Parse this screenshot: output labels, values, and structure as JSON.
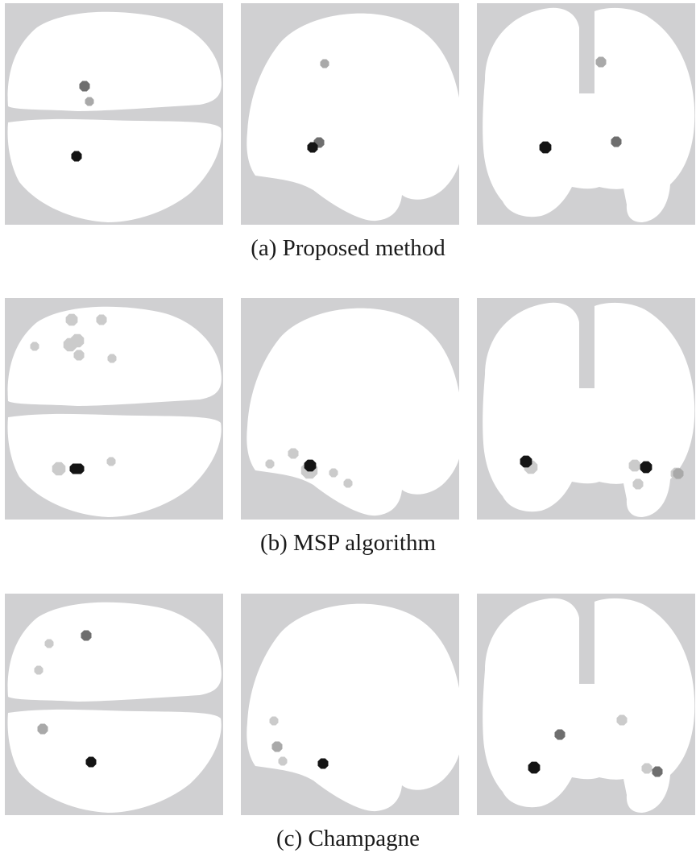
{
  "figure": {
    "colors": {
      "background": "#d0d0d2",
      "brain": "#ffffff",
      "strong": "#141414",
      "medium": "#6e6e6e",
      "weak": "#a9a9a9",
      "faint": "#cbcbcb"
    },
    "rows": [
      {
        "caption": "(a) Proposed method",
        "views": [
          {
            "view": "axial",
            "sources": [
              {
                "intensity": "medium",
                "type": "axial",
                "i": 0
              },
              {
                "intensity": "weak",
                "type": "axial",
                "i": 1
              },
              {
                "intensity": "strong",
                "type": "axial",
                "i": 2
              }
            ]
          },
          {
            "view": "sagittal",
            "sources": [
              {
                "intensity": "weak",
                "i": 0
              },
              {
                "intensity": "medium",
                "i": 1
              },
              {
                "intensity": "strong",
                "i": 2
              }
            ]
          },
          {
            "view": "coronal",
            "sources": [
              {
                "intensity": "weak",
                "i": 0
              },
              {
                "intensity": "strong",
                "i": 1
              },
              {
                "intensity": "medium",
                "i": 2
              }
            ]
          }
        ]
      },
      {
        "caption": "(b) MSP algorithm",
        "views": [
          {
            "view": "axial",
            "sources": [
              {
                "intensity": "faint"
              },
              {
                "intensity": "faint"
              },
              {
                "intensity": "faint"
              },
              {
                "intensity": "faint"
              },
              {
                "intensity": "faint"
              },
              {
                "intensity": "faint"
              },
              {
                "intensity": "faint"
              },
              {
                "intensity": "faint"
              },
              {
                "intensity": "faint"
              },
              {
                "intensity": "strong"
              },
              {
                "intensity": "strong"
              }
            ]
          },
          {
            "view": "sagittal",
            "sources": [
              {
                "intensity": "faint"
              },
              {
                "intensity": "faint"
              },
              {
                "intensity": "faint"
              },
              {
                "intensity": "faint"
              },
              {
                "intensity": "faint"
              },
              {
                "intensity": "strong"
              }
            ]
          },
          {
            "view": "coronal",
            "sources": [
              {
                "intensity": "faint"
              },
              {
                "intensity": "faint"
              },
              {
                "intensity": "faint"
              },
              {
                "intensity": "faint"
              },
              {
                "intensity": "weak"
              },
              {
                "intensity": "strong"
              },
              {
                "intensity": "strong"
              }
            ]
          }
        ]
      },
      {
        "caption": "(c) Champagne",
        "views": [
          {
            "view": "axial",
            "sources": [
              {
                "intensity": "faint"
              },
              {
                "intensity": "medium"
              },
              {
                "intensity": "faint"
              },
              {
                "intensity": "weak"
              },
              {
                "intensity": "strong"
              }
            ]
          },
          {
            "view": "sagittal",
            "sources": [
              {
                "intensity": "faint"
              },
              {
                "intensity": "weak"
              },
              {
                "intensity": "faint"
              },
              {
                "intensity": "strong"
              }
            ]
          },
          {
            "view": "coronal",
            "sources": [
              {
                "intensity": "faint"
              },
              {
                "intensity": "medium"
              },
              {
                "intensity": "strong"
              },
              {
                "intensity": "faint"
              },
              {
                "intensity": "medium"
              }
            ]
          }
        ]
      }
    ]
  }
}
